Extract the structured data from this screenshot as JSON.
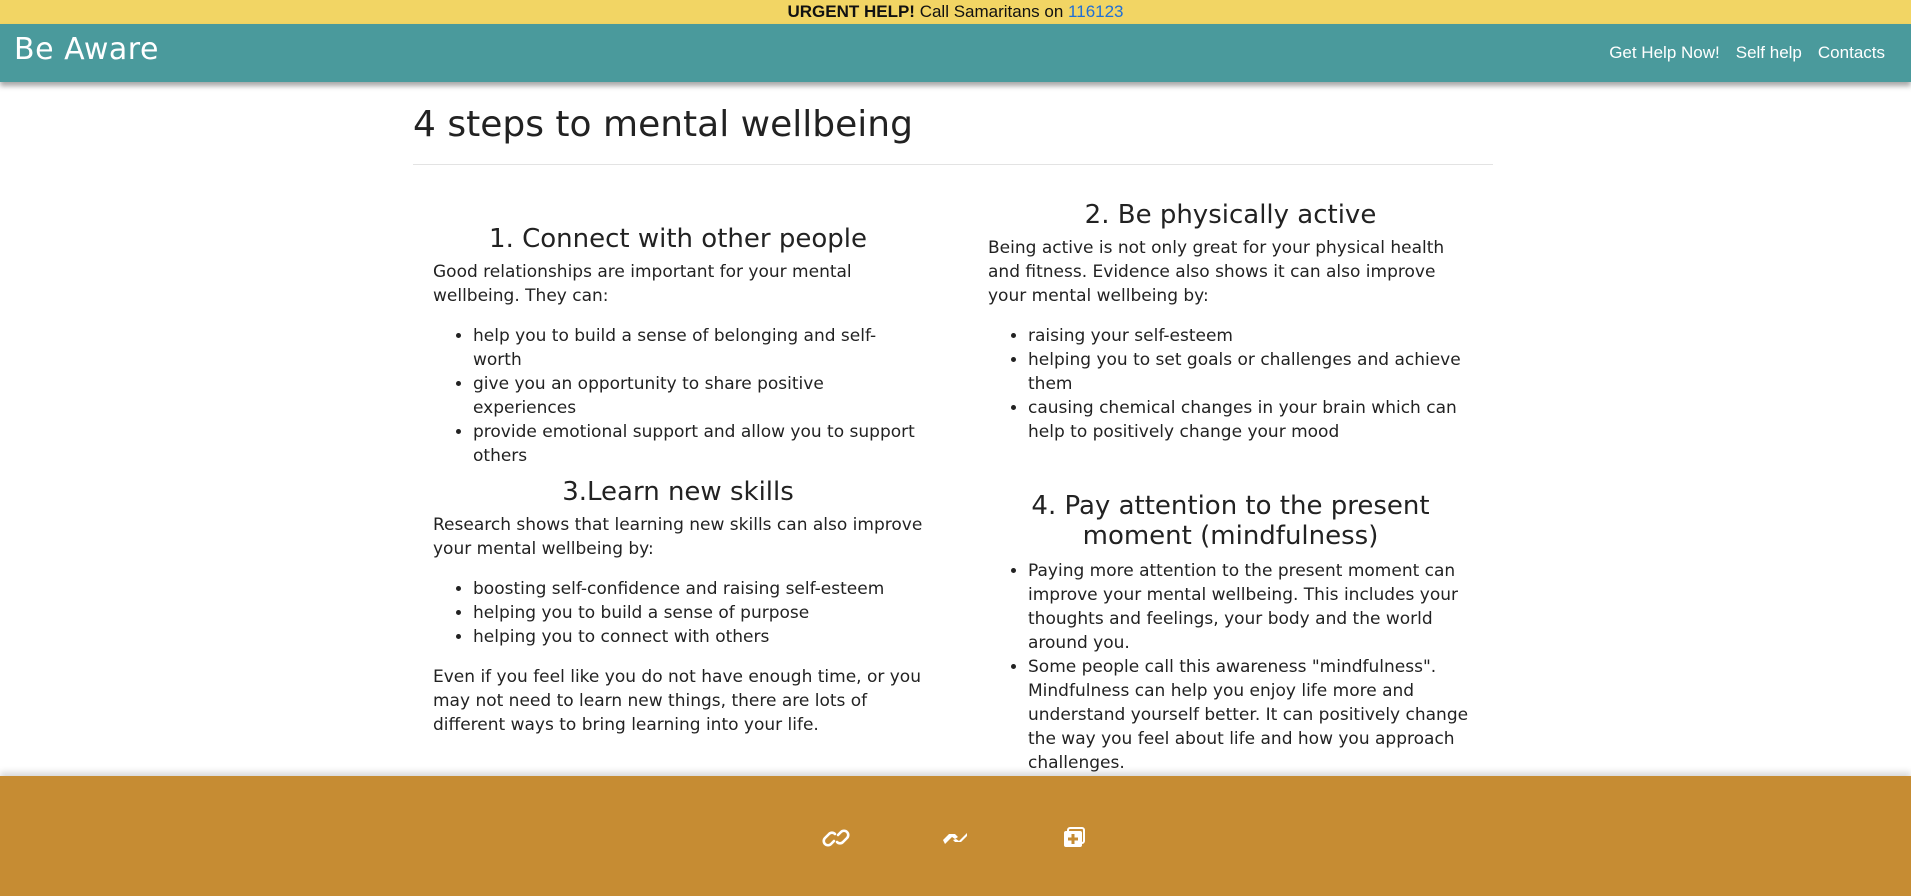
{
  "urgent": {
    "strong": "URGENT HELP!",
    "text": " Call Samaritans on ",
    "number": "116123"
  },
  "nav": {
    "brand": "Be Aware",
    "links": [
      "Get Help Now!",
      "Self help",
      "Contacts"
    ]
  },
  "page": {
    "title": "4 steps to mental wellbeing"
  },
  "sections": [
    {
      "heading": "1. Connect with other people",
      "intro": "Good relationships are important for your mental wellbeing. They can:",
      "items": [
        "help you to build a sense of belonging and self-worth",
        "give you an opportunity to share positive experiences",
        "provide emotional support and allow you to support others"
      ]
    },
    {
      "heading": "2. Be physically active",
      "intro": "Being active is not only great for your physical health and fitness. Evidence also shows it can also improve your mental wellbeing by:",
      "items": [
        "raising your self-esteem",
        "helping you to set goals or challenges and achieve them",
        "causing chemical changes in your brain which can help to positively change your mood"
      ]
    },
    {
      "heading": "3.Learn new skills",
      "intro": "Research shows that learning new skills can also improve your mental wellbeing by:",
      "items": [
        "boosting self-confidence and raising self-esteem",
        "helping you to build a sense of purpose",
        "helping you to connect with others"
      ],
      "outro": "Even if you feel like you do not have enough time, or you may not need to learn new things, there are lots of different ways to bring learning into your life."
    },
    {
      "heading": "4. Pay attention to the present moment (mindfulness)",
      "items": [
        "Paying more attention to the present moment can improve your mental wellbeing. This includes your thoughts and feelings, your body and the world around you.",
        "Some people call this awareness \"mindfulness\". Mindfulness can help you enjoy life more and understand yourself better. It can positively change the way you feel about life and how you approach challenges."
      ]
    }
  ],
  "footer": {
    "icons": [
      "link-icon",
      "helping-hands-icon",
      "first-aid-icon"
    ]
  },
  "colors": {
    "urgent_bg": "#f2d564",
    "nav_bg": "#4a9a9c",
    "footer_bg": "#c68c33",
    "link": "#1f6fd6"
  }
}
